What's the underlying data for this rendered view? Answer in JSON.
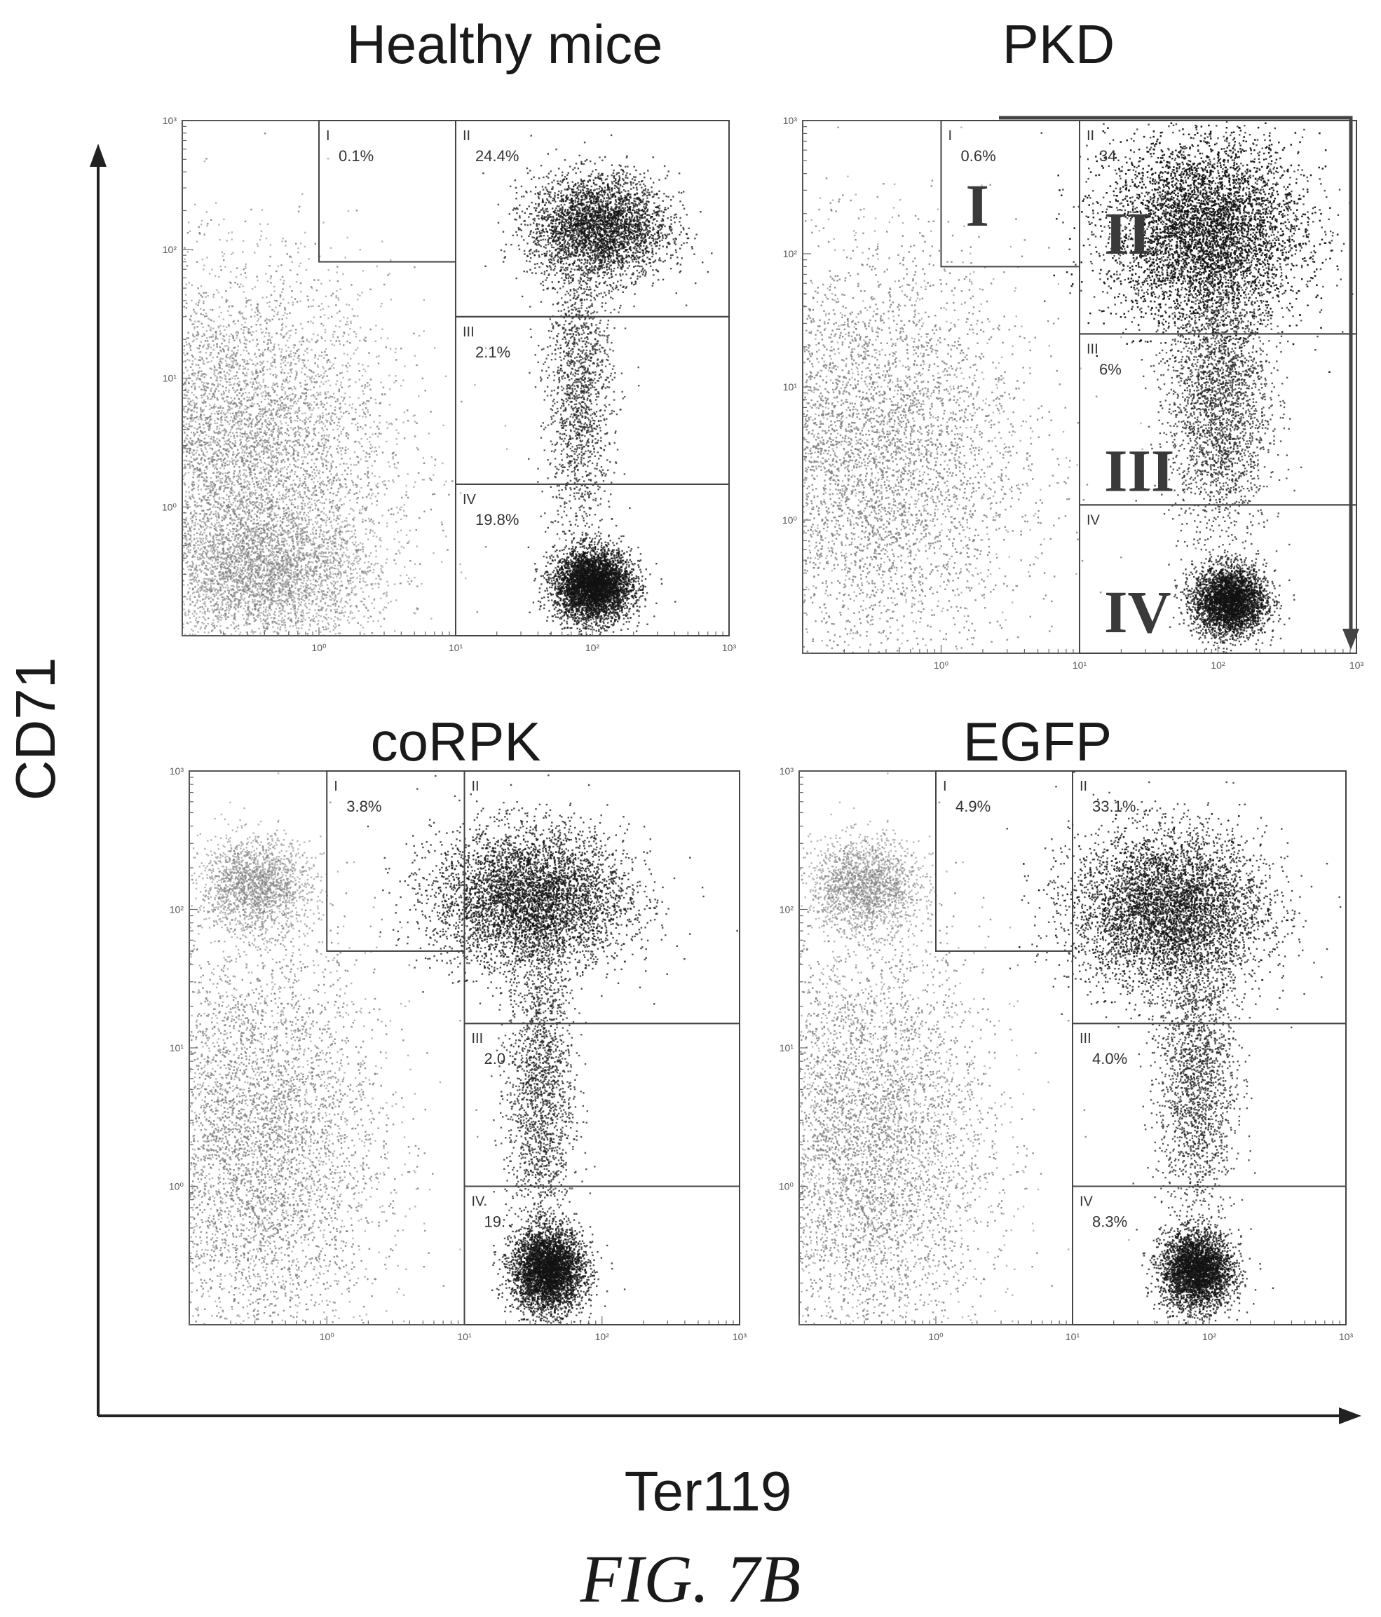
{
  "figure": {
    "caption": "FIG. 7B",
    "y_axis_title": "CD71",
    "x_axis_title": "Ter119"
  },
  "chart_data": [
    {
      "type": "scatter",
      "id": "healthy",
      "title": "Healthy mice",
      "xscale": "log",
      "yscale": "log",
      "xlim": [
        0.1,
        1000
      ],
      "ylim": [
        0.1,
        1000
      ],
      "x_ticks": [
        "10⁰",
        "10¹",
        "10²",
        "10³"
      ],
      "y_ticks": [
        "10³",
        "10²",
        "10¹",
        "10⁰"
      ],
      "populations": [
        {
          "cx": 0.25,
          "cy": 2.5,
          "sx": 0.55,
          "sy": 0.7,
          "n": 9000,
          "shade": "#7a7a7a"
        },
        {
          "cx": 0.4,
          "cy": 0.3,
          "sx": 0.4,
          "sy": 0.25,
          "n": 3000,
          "shade": "#7a7a7a"
        },
        {
          "cx": 100,
          "cy": 0.25,
          "sx": 0.14,
          "sy": 0.14,
          "n": 4500,
          "shade": "#111111"
        },
        {
          "cx": 110,
          "cy": 150,
          "sx": 0.25,
          "sy": 0.2,
          "n": 3500,
          "shade": "#111111"
        },
        {
          "cx": 80,
          "cy": 8,
          "sx": 0.12,
          "sy": 0.55,
          "n": 1500,
          "shade": "#222222"
        }
      ],
      "gates": [
        {
          "label": "I",
          "percent": "0.1%",
          "x": [
            1.0,
            10
          ],
          "y": [
            80,
            1000
          ]
        },
        {
          "label": "II",
          "percent": "24.4%",
          "x": [
            10,
            1000
          ],
          "y": [
            30,
            1000
          ]
        },
        {
          "label": "III",
          "percent": "2.1%",
          "x": [
            10,
            1000
          ],
          "y": [
            1.5,
            30
          ]
        },
        {
          "label": "IV",
          "percent": "19.8%",
          "x": [
            10,
            1000
          ],
          "y": [
            0.1,
            1.5
          ]
        }
      ]
    },
    {
      "type": "scatter",
      "id": "pkd",
      "title": "PKD",
      "xscale": "log",
      "yscale": "log",
      "xlim": [
        0.1,
        1000
      ],
      "ylim": [
        0.1,
        1000
      ],
      "x_ticks": [
        "10⁰",
        "10¹",
        "10²",
        "10³"
      ],
      "y_ticks": [
        "10³",
        "10²",
        "10¹",
        "10⁰"
      ],
      "populations": [
        {
          "cx": 0.3,
          "cy": 3,
          "sx": 0.55,
          "sy": 0.75,
          "n": 9000,
          "shade": "#7a7a7a"
        },
        {
          "cx": 120,
          "cy": 0.25,
          "sx": 0.13,
          "sy": 0.13,
          "n": 3500,
          "shade": "#111111"
        },
        {
          "cx": 80,
          "cy": 150,
          "sx": 0.35,
          "sy": 0.35,
          "n": 8000,
          "shade": "#111111"
        },
        {
          "cx": 100,
          "cy": 8,
          "sx": 0.18,
          "sy": 0.5,
          "n": 2500,
          "shade": "#222222"
        }
      ],
      "gates": [
        {
          "label": "I",
          "percent": "0.6%",
          "x": [
            1.0,
            10
          ],
          "y": [
            80,
            1000
          ]
        },
        {
          "label": "II",
          "percent": "34.",
          "x": [
            10,
            1000
          ],
          "y": [
            25,
            1000
          ]
        },
        {
          "label": "III",
          "percent": "6%",
          "x": [
            10,
            1000
          ],
          "y": [
            1.3,
            25
          ]
        },
        {
          "label": "IV",
          "percent": "",
          "x": [
            10,
            1000
          ],
          "y": [
            0.1,
            1.3
          ]
        }
      ],
      "big_labels": [
        "I",
        "II",
        "III",
        "IV"
      ]
    },
    {
      "type": "scatter",
      "id": "corpk",
      "title": "coRPK",
      "xscale": "log",
      "yscale": "log",
      "xlim": [
        0.1,
        1000
      ],
      "ylim": [
        0.1,
        1000
      ],
      "x_ticks": [
        "10⁰",
        "10¹",
        "10²",
        "10³"
      ],
      "y_ticks": [
        "10³",
        "10²",
        "10¹",
        "10⁰"
      ],
      "populations": [
        {
          "cx": 0.3,
          "cy": 150,
          "sx": 0.2,
          "sy": 0.17,
          "n": 1800,
          "shade": "#7a7a7a"
        },
        {
          "cx": 0.3,
          "cy": 2,
          "sx": 0.45,
          "sy": 0.75,
          "n": 8000,
          "shade": "#7a7a7a"
        },
        {
          "cx": 40,
          "cy": 0.25,
          "sx": 0.13,
          "sy": 0.15,
          "n": 4000,
          "shade": "#111111"
        },
        {
          "cx": 30,
          "cy": 120,
          "sx": 0.35,
          "sy": 0.25,
          "n": 5000,
          "shade": "#111111"
        },
        {
          "cx": 35,
          "cy": 5,
          "sx": 0.12,
          "sy": 0.55,
          "n": 1800,
          "shade": "#222222"
        }
      ],
      "gates": [
        {
          "label": "I",
          "percent": "3.8%",
          "x": [
            1.0,
            10
          ],
          "y": [
            50,
            1000
          ]
        },
        {
          "label": "II",
          "percent": "",
          "x": [
            10,
            1000
          ],
          "y": [
            15,
            1000
          ]
        },
        {
          "label": "III",
          "percent": "2.0",
          "x": [
            10,
            1000
          ],
          "y": [
            1.0,
            15
          ]
        },
        {
          "label": "IV",
          "percent": "19.",
          "x": [
            10,
            1000
          ],
          "y": [
            0.1,
            1.0
          ]
        }
      ]
    },
    {
      "type": "scatter",
      "id": "egfp",
      "title": "EGFP",
      "xscale": "log",
      "yscale": "log",
      "xlim": [
        0.1,
        1000
      ],
      "ylim": [
        0.1,
        1000
      ],
      "x_ticks": [
        "10⁰",
        "10¹",
        "10²",
        "10³"
      ],
      "y_ticks": [
        "10³",
        "10²",
        "10¹",
        "10⁰"
      ],
      "populations": [
        {
          "cx": 0.3,
          "cy": 150,
          "sx": 0.2,
          "sy": 0.17,
          "n": 1800,
          "shade": "#7a7a7a"
        },
        {
          "cx": 0.3,
          "cy": 2,
          "sx": 0.45,
          "sy": 0.75,
          "n": 8000,
          "shade": "#7a7a7a"
        },
        {
          "cx": 80,
          "cy": 0.25,
          "sx": 0.13,
          "sy": 0.14,
          "n": 3500,
          "shade": "#111111"
        },
        {
          "cx": 50,
          "cy": 100,
          "sx": 0.35,
          "sy": 0.28,
          "n": 5500,
          "shade": "#111111"
        },
        {
          "cx": 80,
          "cy": 6,
          "sx": 0.14,
          "sy": 0.5,
          "n": 1800,
          "shade": "#222222"
        }
      ],
      "gates": [
        {
          "label": "I",
          "percent": "4.9%",
          "x": [
            1.0,
            10
          ],
          "y": [
            50,
            1000
          ]
        },
        {
          "label": "II",
          "percent": "33.1%",
          "x": [
            10,
            1000
          ],
          "y": [
            15,
            1000
          ]
        },
        {
          "label": "III",
          "percent": "4.0%",
          "x": [
            10,
            1000
          ],
          "y": [
            1.0,
            15
          ]
        },
        {
          "label": "IV",
          "percent": "8.3%",
          "x": [
            10,
            1000
          ],
          "y": [
            0.1,
            1.0
          ]
        }
      ]
    }
  ]
}
